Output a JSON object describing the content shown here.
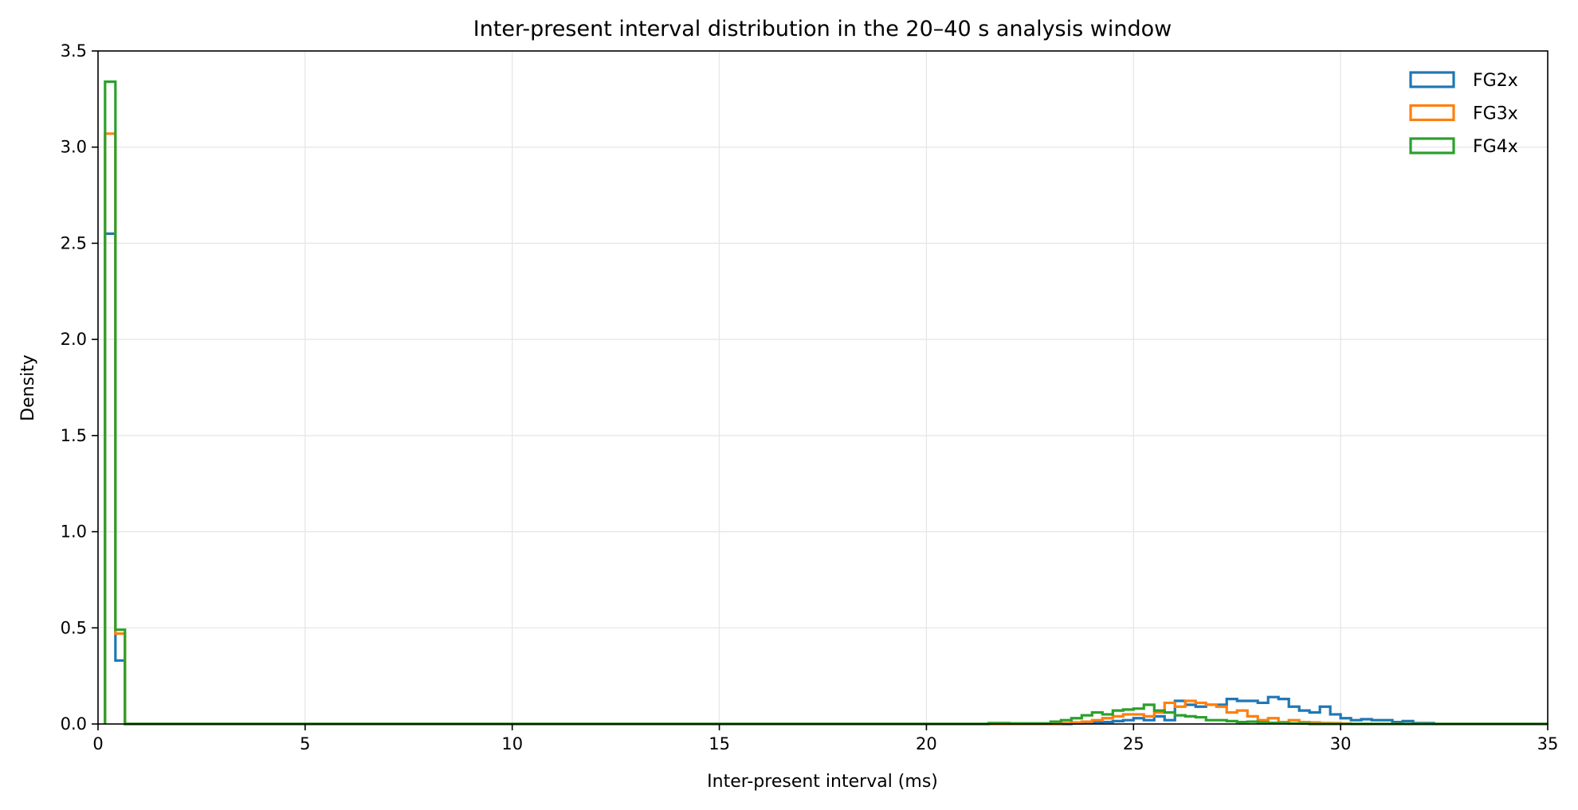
{
  "chart_data": {
    "type": "histogram-step",
    "title": "Inter-present interval distribution in the 20–40 s analysis window",
    "xlabel": "Inter-present interval (ms)",
    "ylabel": "Density",
    "xlim": [
      0,
      35
    ],
    "ylim": [
      0,
      3.5
    ],
    "xticks": [
      "0",
      "5",
      "10",
      "15",
      "20",
      "25",
      "30",
      "35"
    ],
    "yticks": [
      "0.0",
      "0.5",
      "1.0",
      "1.5",
      "2.0",
      "2.5",
      "3.0",
      "3.5"
    ],
    "grid": true,
    "legend_position": "top-right",
    "series": [
      {
        "name": "FG2x",
        "color": "#1f77b4",
        "spike": {
          "edges": [
            0.17,
            0.42,
            0.65
          ],
          "values": [
            2.55,
            0.33
          ]
        },
        "bin_width": 0.25,
        "hump_start": 23.5,
        "hump_values": [
          0.003,
          0.006,
          0.008,
          0.01,
          0.015,
          0.02,
          0.03,
          0.02,
          0.04,
          0.02,
          0.12,
          0.1,
          0.09,
          0.1,
          0.1,
          0.13,
          0.12,
          0.12,
          0.11,
          0.14,
          0.13,
          0.09,
          0.07,
          0.06,
          0.09,
          0.05,
          0.03,
          0.02,
          0.025,
          0.02,
          0.02,
          0.01,
          0.015,
          0.005,
          0.005
        ]
      },
      {
        "name": "FG3x",
        "color": "#ff7f0e",
        "spike": {
          "edges": [
            0.17,
            0.42,
            0.65
          ],
          "values": [
            3.07,
            0.47
          ]
        },
        "bin_width": 0.25,
        "hump_start": 23.25,
        "hump_values": [
          0.004,
          0.008,
          0.012,
          0.02,
          0.03,
          0.04,
          0.05,
          0.05,
          0.04,
          0.06,
          0.11,
          0.09,
          0.12,
          0.11,
          0.1,
          0.09,
          0.06,
          0.07,
          0.04,
          0.02,
          0.03,
          0.01,
          0.02,
          0.01,
          0.008,
          0.005,
          0.004,
          0.002
        ]
      },
      {
        "name": "FG4x",
        "color": "#2ca02c",
        "spike": {
          "edges": [
            0.17,
            0.42,
            0.65
          ],
          "values": [
            3.34,
            0.49
          ]
        },
        "bin_width": 0.25,
        "hump_start": 21.5,
        "hump_values": [
          0.005,
          0.005,
          0.003,
          0.003,
          0.003,
          0.003,
          0.012,
          0.02,
          0.03,
          0.045,
          0.06,
          0.05,
          0.07,
          0.075,
          0.08,
          0.1,
          0.07,
          0.06,
          0.045,
          0.04,
          0.035,
          0.02,
          0.02,
          0.015,
          0.01,
          0.012,
          0.008,
          0.006,
          0.005,
          0.003,
          0.002
        ]
      }
    ]
  }
}
